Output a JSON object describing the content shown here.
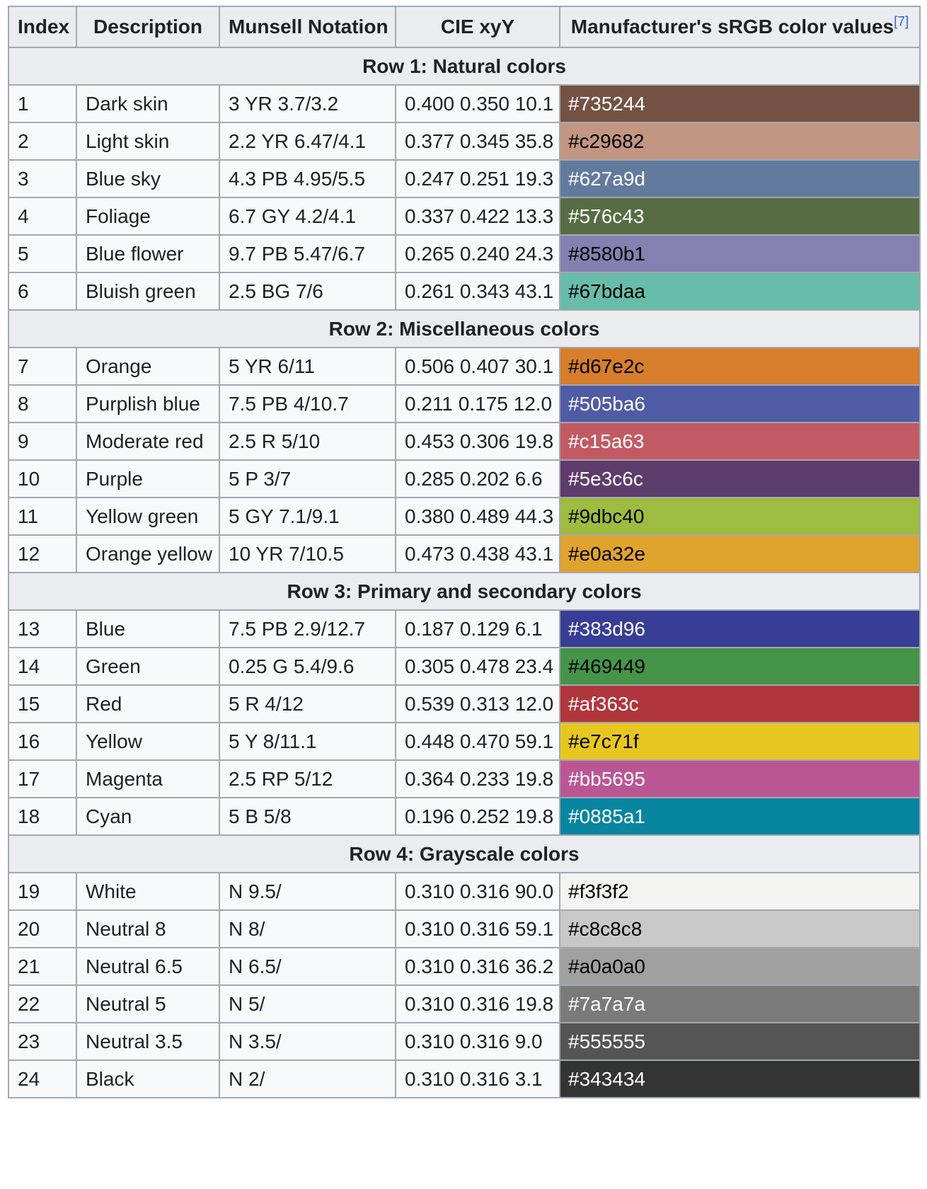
{
  "table": {
    "headers": [
      {
        "label": "Index"
      },
      {
        "label": "Description"
      },
      {
        "label": "Munsell Notation"
      },
      {
        "label": "CIE xyY"
      },
      {
        "label": "Manufacturer's sRGB color values",
        "ref": "[7]"
      }
    ],
    "sections": [
      {
        "title": "Row 1: Natural colors",
        "rows": [
          {
            "index": "1",
            "description": "Dark skin",
            "munsell": "3 YR 3.7/3.2",
            "cie": "0.400 0.350 10.1",
            "srgb": "#735244",
            "text_color": "#ffffff"
          },
          {
            "index": "2",
            "description": "Light skin",
            "munsell": "2.2 YR 6.47/4.1",
            "cie": "0.377 0.345 35.8",
            "srgb": "#c29682",
            "text_color": "#000000"
          },
          {
            "index": "3",
            "description": "Blue sky",
            "munsell": "4.3 PB 4.95/5.5",
            "cie": "0.247 0.251 19.3",
            "srgb": "#627a9d",
            "text_color": "#ffffff"
          },
          {
            "index": "4",
            "description": "Foliage",
            "munsell": "6.7 GY 4.2/4.1",
            "cie": "0.337 0.422 13.3",
            "srgb": "#576c43",
            "text_color": "#ffffff"
          },
          {
            "index": "5",
            "description": "Blue flower",
            "munsell": "9.7 PB 5.47/6.7",
            "cie": "0.265 0.240 24.3",
            "srgb": "#8580b1",
            "text_color": "#000000"
          },
          {
            "index": "6",
            "description": "Bluish green",
            "munsell": "2.5 BG 7/6",
            "cie": "0.261 0.343 43.1",
            "srgb": "#67bdaa",
            "text_color": "#000000"
          }
        ]
      },
      {
        "title": "Row 2: Miscellaneous colors",
        "rows": [
          {
            "index": "7",
            "description": "Orange",
            "munsell": "5 YR 6/11",
            "cie": "0.506 0.407 30.1",
            "srgb": "#d67e2c",
            "text_color": "#000000"
          },
          {
            "index": "8",
            "description": "Purplish blue",
            "munsell": "7.5 PB 4/10.7",
            "cie": "0.211 0.175 12.0",
            "srgb": "#505ba6",
            "text_color": "#ffffff"
          },
          {
            "index": "9",
            "description": "Moderate red",
            "munsell": "2.5 R 5/10",
            "cie": "0.453 0.306 19.8",
            "srgb": "#c15a63",
            "text_color": "#ffffff"
          },
          {
            "index": "10",
            "description": "Purple",
            "munsell": "5 P 3/7",
            "cie": "0.285 0.202 6.6",
            "srgb": "#5e3c6c",
            "text_color": "#ffffff"
          },
          {
            "index": "11",
            "description": "Yellow green",
            "munsell": "5 GY 7.1/9.1",
            "cie": "0.380 0.489 44.3",
            "srgb": "#9dbc40",
            "text_color": "#000000"
          },
          {
            "index": "12",
            "description": "Orange yellow",
            "munsell": "10 YR 7/10.5",
            "cie": "0.473 0.438 43.1",
            "srgb": "#e0a32e",
            "text_color": "#000000"
          }
        ]
      },
      {
        "title": "Row 3: Primary and secondary colors",
        "rows": [
          {
            "index": "13",
            "description": "Blue",
            "munsell": "7.5 PB 2.9/12.7",
            "cie": "0.187 0.129 6.1",
            "srgb": "#383d96",
            "text_color": "#ffffff"
          },
          {
            "index": "14",
            "description": "Green",
            "munsell": "0.25 G 5.4/9.6",
            "cie": "0.305 0.478 23.4",
            "srgb": "#469449",
            "text_color": "#000000"
          },
          {
            "index": "15",
            "description": "Red",
            "munsell": "5 R 4/12",
            "cie": "0.539 0.313 12.0",
            "srgb": "#af363c",
            "text_color": "#ffffff"
          },
          {
            "index": "16",
            "description": "Yellow",
            "munsell": "5 Y 8/11.1",
            "cie": "0.448 0.470 59.1",
            "srgb": "#e7c71f",
            "text_color": "#000000"
          },
          {
            "index": "17",
            "description": "Magenta",
            "munsell": "2.5 RP 5/12",
            "cie": "0.364 0.233 19.8",
            "srgb": "#bb5695",
            "text_color": "#ffffff"
          },
          {
            "index": "18",
            "description": "Cyan",
            "munsell": "5 B 5/8",
            "cie": "0.196 0.252 19.8",
            "srgb": "#0885a1",
            "text_color": "#ffffff"
          }
        ]
      },
      {
        "title": "Row 4: Grayscale colors",
        "rows": [
          {
            "index": "19",
            "description": "White",
            "munsell": "N 9.5/",
            "cie": "0.310 0.316 90.0",
            "srgb": "#f3f3f2",
            "text_color": "#000000"
          },
          {
            "index": "20",
            "description": "Neutral 8",
            "munsell": "N 8/",
            "cie": "0.310 0.316 59.1",
            "srgb": "#c8c8c8",
            "text_color": "#000000"
          },
          {
            "index": "21",
            "description": "Neutral 6.5",
            "munsell": "N 6.5/",
            "cie": "0.310 0.316 36.2",
            "srgb": "#a0a0a0",
            "text_color": "#000000"
          },
          {
            "index": "22",
            "description": "Neutral 5",
            "munsell": "N 5/",
            "cie": "0.310 0.316 19.8",
            "srgb": "#7a7a7a",
            "text_color": "#ffffff"
          },
          {
            "index": "23",
            "description": "Neutral 3.5",
            "munsell": "N 3.5/",
            "cie": "0.310 0.316 9.0",
            "srgb": "#555555",
            "text_color": "#ffffff"
          },
          {
            "index": "24",
            "description": "Black",
            "munsell": "N 2/",
            "cie": "0.310 0.316 3.1",
            "srgb": "#343434",
            "text_color": "#ffffff"
          }
        ]
      }
    ]
  }
}
